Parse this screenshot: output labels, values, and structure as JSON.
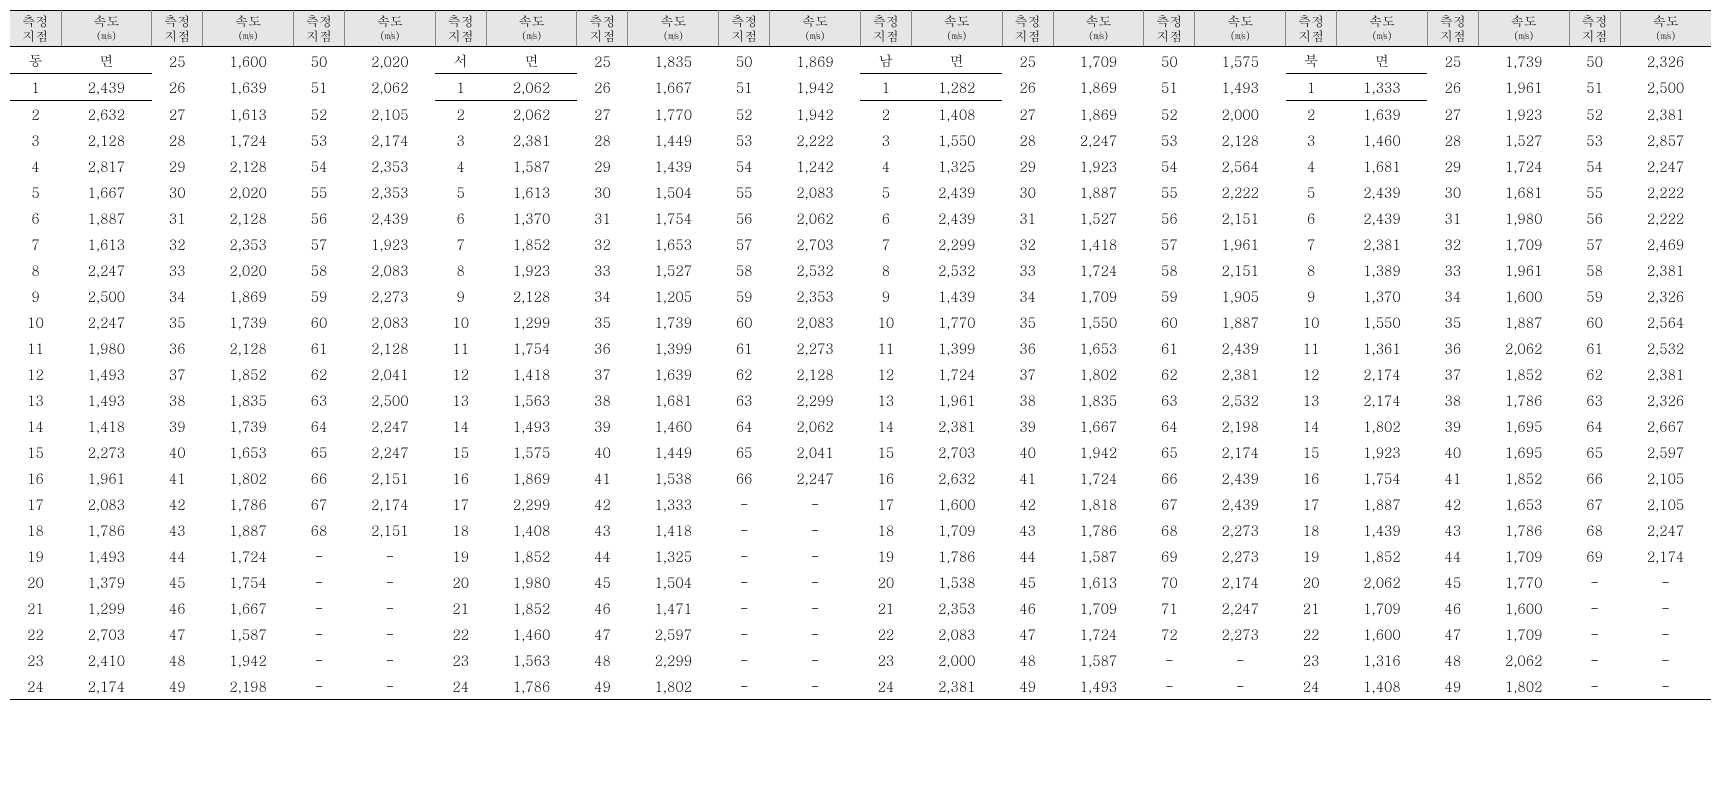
{
  "type": "table",
  "columns_repeat": 12,
  "header": {
    "pt": "측정\n지점",
    "vl": "속도\n(㎧)"
  },
  "header_bg": "#e6e6e6",
  "header_fontsize": 13,
  "body_fontsize": 14,
  "border_color": "#000000",
  "inner_border_color": "#888888",
  "font_family": "Batang, Times New Roman, serif",
  "dash": "-",
  "sections": [
    {
      "name": "동 면",
      "cols": [
        [
          [
            "동",
            "면"
          ],
          [
            1,
            "2,439"
          ],
          [
            2,
            "2,632"
          ],
          [
            3,
            "2,128"
          ],
          [
            4,
            "2,817"
          ],
          [
            5,
            "1,667"
          ],
          [
            6,
            "1,887"
          ],
          [
            7,
            "1,613"
          ],
          [
            8,
            "2,247"
          ],
          [
            9,
            "2,500"
          ],
          [
            10,
            "2,247"
          ],
          [
            11,
            "1,980"
          ],
          [
            12,
            "1,493"
          ],
          [
            13,
            "1,493"
          ],
          [
            14,
            "1,418"
          ],
          [
            15,
            "2,273"
          ],
          [
            16,
            "1,961"
          ],
          [
            17,
            "2,083"
          ],
          [
            18,
            "1,786"
          ],
          [
            19,
            "1,493"
          ],
          [
            20,
            "1,379"
          ],
          [
            21,
            "1,299"
          ],
          [
            22,
            "2,703"
          ],
          [
            23,
            "2,410"
          ],
          [
            24,
            "2,174"
          ]
        ],
        [
          [
            25,
            "1,600"
          ],
          [
            26,
            "1,639"
          ],
          [
            27,
            "1,613"
          ],
          [
            28,
            "1,724"
          ],
          [
            29,
            "2,128"
          ],
          [
            30,
            "2,020"
          ],
          [
            31,
            "2,128"
          ],
          [
            32,
            "2,353"
          ],
          [
            33,
            "2,020"
          ],
          [
            34,
            "1,869"
          ],
          [
            35,
            "1,739"
          ],
          [
            36,
            "2,128"
          ],
          [
            37,
            "1,852"
          ],
          [
            38,
            "1,835"
          ],
          [
            39,
            "1,739"
          ],
          [
            40,
            "1,653"
          ],
          [
            41,
            "1,802"
          ],
          [
            42,
            "1,786"
          ],
          [
            43,
            "1,887"
          ],
          [
            44,
            "1,724"
          ],
          [
            45,
            "1,754"
          ],
          [
            46,
            "1,667"
          ],
          [
            47,
            "1,587"
          ],
          [
            48,
            "1,942"
          ],
          [
            49,
            "2,198"
          ]
        ],
        [
          [
            50,
            "2,020"
          ],
          [
            51,
            "2,062"
          ],
          [
            52,
            "2,105"
          ],
          [
            53,
            "2,174"
          ],
          [
            54,
            "2,353"
          ],
          [
            55,
            "2,353"
          ],
          [
            56,
            "2,439"
          ],
          [
            57,
            "1,923"
          ],
          [
            58,
            "2,083"
          ],
          [
            59,
            "2,273"
          ],
          [
            60,
            "2,083"
          ],
          [
            61,
            "2,128"
          ],
          [
            62,
            "2,041"
          ],
          [
            63,
            "2,500"
          ],
          [
            64,
            "2,247"
          ],
          [
            65,
            "2,247"
          ],
          [
            66,
            "2,151"
          ],
          [
            67,
            "2,174"
          ],
          [
            68,
            "2,151"
          ],
          [
            "-",
            "-"
          ],
          [
            "-",
            "-"
          ],
          [
            "-",
            "-"
          ],
          [
            "-",
            "-"
          ],
          [
            "-",
            "-"
          ],
          [
            "-",
            "-"
          ]
        ]
      ]
    },
    {
      "name": "서 면",
      "cols": [
        [
          [
            "서",
            "면"
          ],
          [
            1,
            "2,062"
          ],
          [
            2,
            "2,062"
          ],
          [
            3,
            "2,381"
          ],
          [
            4,
            "1,587"
          ],
          [
            5,
            "1,613"
          ],
          [
            6,
            "1,370"
          ],
          [
            7,
            "1,852"
          ],
          [
            8,
            "1,923"
          ],
          [
            9,
            "2,128"
          ],
          [
            10,
            "1,299"
          ],
          [
            11,
            "1,754"
          ],
          [
            12,
            "1,418"
          ],
          [
            13,
            "1,563"
          ],
          [
            14,
            "1,493"
          ],
          [
            15,
            "1,575"
          ],
          [
            16,
            "1,869"
          ],
          [
            17,
            "2,299"
          ],
          [
            18,
            "1,408"
          ],
          [
            19,
            "1,852"
          ],
          [
            20,
            "1,980"
          ],
          [
            21,
            "1,852"
          ],
          [
            22,
            "1,460"
          ],
          [
            23,
            "1,563"
          ],
          [
            24,
            "1,786"
          ]
        ],
        [
          [
            25,
            "1,835"
          ],
          [
            26,
            "1,667"
          ],
          [
            27,
            "1,770"
          ],
          [
            28,
            "1,449"
          ],
          [
            29,
            "1,439"
          ],
          [
            30,
            "1,504"
          ],
          [
            31,
            "1,754"
          ],
          [
            32,
            "1,653"
          ],
          [
            33,
            "1,527"
          ],
          [
            34,
            "1,205"
          ],
          [
            35,
            "1,739"
          ],
          [
            36,
            "1,399"
          ],
          [
            37,
            "1,639"
          ],
          [
            38,
            "1,681"
          ],
          [
            39,
            "1,460"
          ],
          [
            40,
            "1,449"
          ],
          [
            41,
            "1,538"
          ],
          [
            42,
            "1,333"
          ],
          [
            43,
            "1,418"
          ],
          [
            44,
            "1,325"
          ],
          [
            45,
            "1,504"
          ],
          [
            46,
            "1,471"
          ],
          [
            47,
            "2,597"
          ],
          [
            48,
            "2,299"
          ],
          [
            49,
            "1,802"
          ]
        ],
        [
          [
            50,
            "1,869"
          ],
          [
            51,
            "1,942"
          ],
          [
            52,
            "1,942"
          ],
          [
            53,
            "2,222"
          ],
          [
            54,
            "1,242"
          ],
          [
            55,
            "2,083"
          ],
          [
            56,
            "2,062"
          ],
          [
            57,
            "2,703"
          ],
          [
            58,
            "2,532"
          ],
          [
            59,
            "2,353"
          ],
          [
            60,
            "2,083"
          ],
          [
            61,
            "2,273"
          ],
          [
            62,
            "2,128"
          ],
          [
            63,
            "2,299"
          ],
          [
            64,
            "2,062"
          ],
          [
            65,
            "2,041"
          ],
          [
            66,
            "2,247"
          ],
          [
            "-",
            "-"
          ],
          [
            "-",
            "-"
          ],
          [
            "-",
            "-"
          ],
          [
            "-",
            "-"
          ],
          [
            "-",
            "-"
          ],
          [
            "-",
            "-"
          ],
          [
            "-",
            "-"
          ],
          [
            "-",
            "-"
          ]
        ]
      ]
    },
    {
      "name": "남 면",
      "cols": [
        [
          [
            "남",
            "면"
          ],
          [
            1,
            "1,282"
          ],
          [
            2,
            "1,408"
          ],
          [
            3,
            "1,550"
          ],
          [
            4,
            "1,325"
          ],
          [
            5,
            "2,439"
          ],
          [
            6,
            "2,439"
          ],
          [
            7,
            "2,299"
          ],
          [
            8,
            "2,532"
          ],
          [
            9,
            "1,439"
          ],
          [
            10,
            "1,770"
          ],
          [
            11,
            "1,399"
          ],
          [
            12,
            "1,724"
          ],
          [
            13,
            "1,961"
          ],
          [
            14,
            "2,381"
          ],
          [
            15,
            "2,703"
          ],
          [
            16,
            "2,632"
          ],
          [
            17,
            "1,600"
          ],
          [
            18,
            "1,709"
          ],
          [
            19,
            "1,786"
          ],
          [
            20,
            "1,538"
          ],
          [
            21,
            "2,353"
          ],
          [
            22,
            "2,083"
          ],
          [
            23,
            "2,000"
          ],
          [
            24,
            "2,381"
          ]
        ],
        [
          [
            25,
            "1,709"
          ],
          [
            26,
            "1,869"
          ],
          [
            27,
            "1,869"
          ],
          [
            28,
            "2,247"
          ],
          [
            29,
            "1,923"
          ],
          [
            30,
            "1,887"
          ],
          [
            31,
            "1,527"
          ],
          [
            32,
            "1,418"
          ],
          [
            33,
            "1,724"
          ],
          [
            34,
            "1,709"
          ],
          [
            35,
            "1,550"
          ],
          [
            36,
            "1,653"
          ],
          [
            37,
            "1,802"
          ],
          [
            38,
            "1,835"
          ],
          [
            39,
            "1,667"
          ],
          [
            40,
            "1,942"
          ],
          [
            41,
            "1,724"
          ],
          [
            42,
            "1,818"
          ],
          [
            43,
            "1,786"
          ],
          [
            44,
            "1,587"
          ],
          [
            45,
            "1,613"
          ],
          [
            46,
            "1,709"
          ],
          [
            47,
            "1,724"
          ],
          [
            48,
            "1,587"
          ],
          [
            49,
            "1,493"
          ]
        ],
        [
          [
            50,
            "1,575"
          ],
          [
            51,
            "1,493"
          ],
          [
            52,
            "2,000"
          ],
          [
            53,
            "2,128"
          ],
          [
            54,
            "2,564"
          ],
          [
            55,
            "2,222"
          ],
          [
            56,
            "2,151"
          ],
          [
            57,
            "1,961"
          ],
          [
            58,
            "2,151"
          ],
          [
            59,
            "1,905"
          ],
          [
            60,
            "1,887"
          ],
          [
            61,
            "2,439"
          ],
          [
            62,
            "2,381"
          ],
          [
            63,
            "2,532"
          ],
          [
            64,
            "2,198"
          ],
          [
            65,
            "2,174"
          ],
          [
            66,
            "2,439"
          ],
          [
            67,
            "2,439"
          ],
          [
            68,
            "2,273"
          ],
          [
            69,
            "2,273"
          ],
          [
            70,
            "2,174"
          ],
          [
            71,
            "2,247"
          ],
          [
            72,
            "2,273"
          ],
          [
            "-",
            "-"
          ],
          [
            "-",
            "-"
          ]
        ]
      ]
    },
    {
      "name": "북 면",
      "cols": [
        [
          [
            "북",
            "면"
          ],
          [
            1,
            "1,333"
          ],
          [
            2,
            "1,639"
          ],
          [
            3,
            "1,460"
          ],
          [
            4,
            "1,681"
          ],
          [
            5,
            "2,439"
          ],
          [
            6,
            "2,439"
          ],
          [
            7,
            "2,381"
          ],
          [
            8,
            "1,389"
          ],
          [
            9,
            "1,370"
          ],
          [
            10,
            "1,550"
          ],
          [
            11,
            "1,361"
          ],
          [
            12,
            "2,174"
          ],
          [
            13,
            "2,174"
          ],
          [
            14,
            "1,802"
          ],
          [
            15,
            "1,923"
          ],
          [
            16,
            "1,754"
          ],
          [
            17,
            "1,887"
          ],
          [
            18,
            "1,439"
          ],
          [
            19,
            "1,852"
          ],
          [
            20,
            "2,062"
          ],
          [
            21,
            "1,709"
          ],
          [
            22,
            "1,600"
          ],
          [
            23,
            "1,316"
          ],
          [
            24,
            "1,408"
          ]
        ],
        [
          [
            25,
            "1,739"
          ],
          [
            26,
            "1,961"
          ],
          [
            27,
            "1,923"
          ],
          [
            28,
            "1,527"
          ],
          [
            29,
            "1,724"
          ],
          [
            30,
            "1,681"
          ],
          [
            31,
            "1,980"
          ],
          [
            32,
            "1,709"
          ],
          [
            33,
            "1,961"
          ],
          [
            34,
            "1,600"
          ],
          [
            35,
            "1,887"
          ],
          [
            36,
            "2,062"
          ],
          [
            37,
            "1,852"
          ],
          [
            38,
            "1,786"
          ],
          [
            39,
            "1,695"
          ],
          [
            40,
            "1,695"
          ],
          [
            41,
            "1,852"
          ],
          [
            42,
            "1,653"
          ],
          [
            43,
            "1,786"
          ],
          [
            44,
            "1,709"
          ],
          [
            45,
            "1,770"
          ],
          [
            46,
            "1,600"
          ],
          [
            47,
            "1,709"
          ],
          [
            48,
            "2,062"
          ],
          [
            49,
            "1,802"
          ]
        ],
        [
          [
            50,
            "2,326"
          ],
          [
            51,
            "2,500"
          ],
          [
            52,
            "2,381"
          ],
          [
            53,
            "2,857"
          ],
          [
            54,
            "2,247"
          ],
          [
            55,
            "2,222"
          ],
          [
            56,
            "2,222"
          ],
          [
            57,
            "2,469"
          ],
          [
            58,
            "2,381"
          ],
          [
            59,
            "2,326"
          ],
          [
            60,
            "2,564"
          ],
          [
            61,
            "2,532"
          ],
          [
            62,
            "2,381"
          ],
          [
            63,
            "2,326"
          ],
          [
            64,
            "2,667"
          ],
          [
            65,
            "2,597"
          ],
          [
            66,
            "2,105"
          ],
          [
            67,
            "2,105"
          ],
          [
            68,
            "2,247"
          ],
          [
            69,
            "2,174"
          ],
          [
            "-",
            "-"
          ],
          [
            "-",
            "-"
          ],
          [
            "-",
            "-"
          ],
          [
            "-",
            "-"
          ],
          [
            "-",
            "-"
          ]
        ]
      ]
    }
  ]
}
